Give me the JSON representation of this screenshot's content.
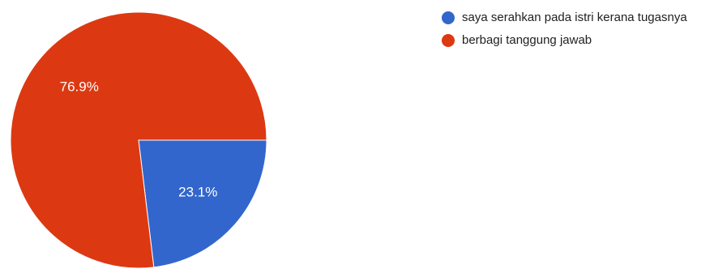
{
  "chart_data": {
    "type": "pie",
    "title": "",
    "categories": [
      "saya serahkan pada istri kerana tugasnya",
      "berbagi tanggung jawab"
    ],
    "values": [
      23.1,
      76.9
    ],
    "labels": [
      "23.1%",
      "76.9%"
    ],
    "colors": [
      "#3366cc",
      "#dc3912"
    ],
    "legend_position": "right"
  }
}
